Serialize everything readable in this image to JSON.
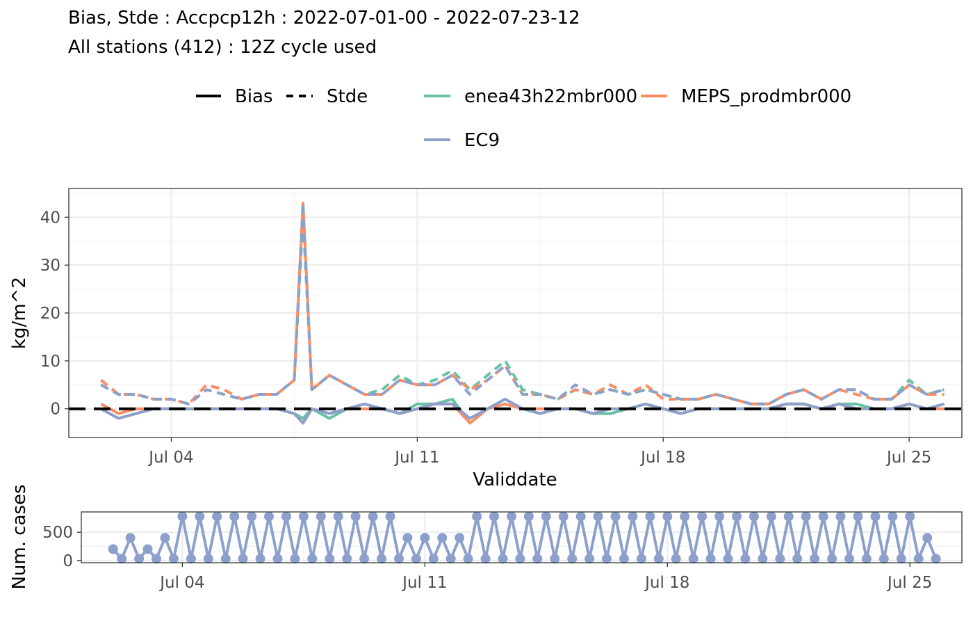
{
  "title": {
    "line1": "Bias, Stde : Accpcp12h : 2022-07-01-00 - 2022-07-23-12",
    "line2": "All stations (412) : 12Z cycle used"
  },
  "legend": {
    "linetypes": [
      {
        "label": "Bias",
        "dash": "solid"
      },
      {
        "label": "Stde",
        "dash": "dashed"
      }
    ],
    "models": [
      {
        "label": "enea43h22mbr000",
        "color": "#66c2a5"
      },
      {
        "label": "MEPS_prodmbr000",
        "color": "#fc8d62"
      },
      {
        "label": "EC9",
        "color": "#8da0cb"
      }
    ]
  },
  "chart_data": [
    {
      "type": "line",
      "xlabel": "Validdate",
      "ylabel": "kg/m^2",
      "x_ticks": [
        "Jul 04",
        "Jul 11",
        "Jul 18",
        "Jul 25"
      ],
      "y_ticks": [
        "0",
        "10",
        "20",
        "30",
        "40"
      ],
      "ylim": [
        -6,
        46
      ],
      "xlim": [
        "2022-07-01T02:00",
        "2022-07-26T12:00"
      ],
      "grid": true,
      "legend_position": "top",
      "reference_line": {
        "y": 0,
        "style": "dashed",
        "color": "#000000"
      },
      "x": [
        "2022-07-02T00:00",
        "2022-07-02T12:00",
        "2022-07-03T00:00",
        "2022-07-03T12:00",
        "2022-07-04T00:00",
        "2022-07-04T12:00",
        "2022-07-05T00:00",
        "2022-07-05T12:00",
        "2022-07-06T00:00",
        "2022-07-06T12:00",
        "2022-07-07T00:00",
        "2022-07-07T12:00",
        "2022-07-07T18:00",
        "2022-07-08T00:00",
        "2022-07-08T12:00",
        "2022-07-09T00:00",
        "2022-07-09T12:00",
        "2022-07-10T00:00",
        "2022-07-10T12:00",
        "2022-07-11T00:00",
        "2022-07-11T12:00",
        "2022-07-12T00:00",
        "2022-07-12T12:00",
        "2022-07-13T00:00",
        "2022-07-13T12:00",
        "2022-07-14T00:00",
        "2022-07-14T12:00",
        "2022-07-15T00:00",
        "2022-07-15T12:00",
        "2022-07-16T00:00",
        "2022-07-16T12:00",
        "2022-07-17T00:00",
        "2022-07-17T12:00",
        "2022-07-18T00:00",
        "2022-07-18T12:00",
        "2022-07-19T00:00",
        "2022-07-19T12:00",
        "2022-07-20T00:00",
        "2022-07-20T12:00",
        "2022-07-21T00:00",
        "2022-07-21T12:00",
        "2022-07-22T00:00",
        "2022-07-22T12:00",
        "2022-07-23T00:00",
        "2022-07-23T12:00",
        "2022-07-24T00:00",
        "2022-07-24T12:00",
        "2022-07-25T00:00",
        "2022-07-25T12:00",
        "2022-07-26T00:00"
      ],
      "series": [
        {
          "name": "enea43h22mbr000",
          "metric": "Stde",
          "color": "#66c2a5",
          "values": [
            5,
            3,
            3,
            2,
            2,
            1,
            4,
            3,
            2,
            3,
            3,
            6,
            40,
            4,
            7,
            5,
            3,
            4,
            7,
            5,
            6,
            8,
            4,
            7,
            10,
            4,
            3,
            2,
            4,
            3,
            4,
            3,
            4,
            3,
            2,
            2,
            3,
            2,
            1,
            1,
            3,
            4,
            2,
            4,
            4,
            2,
            2,
            6,
            3,
            4
          ]
        },
        {
          "name": "MEPS_prodmbr000",
          "metric": "Stde",
          "color": "#fc8d62",
          "values": [
            6,
            3,
            3,
            2,
            2,
            1,
            5,
            4,
            2,
            3,
            3,
            6,
            43,
            4,
            7,
            5,
            3,
            3,
            6,
            5,
            5,
            7,
            4,
            6,
            9,
            3,
            3,
            2,
            4,
            3,
            5,
            3,
            5,
            2,
            2,
            2,
            3,
            2,
            1,
            1,
            3,
            4,
            2,
            4,
            3,
            2,
            2,
            5,
            3,
            3
          ]
        },
        {
          "name": "EC9",
          "metric": "Stde",
          "color": "#8da0cb",
          "values": [
            5,
            3,
            3,
            2,
            2,
            1,
            4,
            3,
            2,
            3,
            3,
            6,
            43,
            4,
            7,
            5,
            3,
            3,
            6,
            5,
            5,
            7,
            3,
            6,
            9,
            3,
            3,
            2,
            5,
            3,
            4,
            3,
            4,
            3,
            2,
            2,
            3,
            2,
            1,
            1,
            3,
            4,
            2,
            4,
            4,
            2,
            2,
            5,
            3,
            4
          ]
        },
        {
          "name": "enea43h22mbr000",
          "metric": "Bias",
          "color": "#66c2a5",
          "values": [
            0,
            -2,
            -1,
            0,
            0,
            0,
            0,
            0,
            0,
            0,
            0,
            -1,
            -2,
            0,
            -2,
            0,
            1,
            0,
            -1,
            1,
            1,
            2,
            -3,
            0,
            2,
            0,
            -1,
            0,
            0,
            -1,
            -1,
            0,
            1,
            0,
            -1,
            0,
            0,
            0,
            0,
            0,
            1,
            1,
            0,
            1,
            1,
            0,
            0,
            1,
            0,
            1
          ]
        },
        {
          "name": "MEPS_prodmbr000",
          "metric": "Bias",
          "color": "#fc8d62",
          "values": [
            1,
            -1,
            0,
            0,
            0,
            0,
            0,
            0,
            0,
            0,
            0,
            -1,
            -3,
            0,
            -1,
            0,
            0,
            0,
            -1,
            0,
            1,
            1,
            -3,
            0,
            1,
            0,
            0,
            0,
            0,
            -1,
            0,
            0,
            1,
            0,
            -1,
            0,
            0,
            0,
            0,
            0,
            1,
            1,
            0,
            1,
            0,
            0,
            0,
            1,
            0,
            0
          ]
        },
        {
          "name": "EC9",
          "metric": "Bias",
          "color": "#8da0cb",
          "values": [
            0,
            -2,
            -1,
            0,
            0,
            0,
            0,
            0,
            0,
            0,
            0,
            -1,
            -3,
            0,
            -1,
            0,
            1,
            0,
            -1,
            0,
            1,
            1,
            -2,
            0,
            2,
            0,
            -1,
            0,
            0,
            -1,
            0,
            0,
            1,
            0,
            -1,
            0,
            0,
            0,
            0,
            0,
            1,
            1,
            0,
            1,
            0,
            0,
            0,
            1,
            0,
            1
          ]
        }
      ]
    },
    {
      "type": "line",
      "ylabel": "Num. cases",
      "x_ticks": [
        "Jul 04",
        "Jul 11",
        "Jul 18",
        "Jul 25"
      ],
      "y_ticks": [
        "0",
        "500"
      ],
      "ylim": [
        -40,
        860
      ],
      "grid": true,
      "series": [
        {
          "name": "EC9",
          "color": "#8da0cb",
          "note_markers": "points",
          "x": [
            "2022-07-02T00:00",
            "2022-07-02T06:00",
            "2022-07-02T12:00",
            "2022-07-02T18:00",
            "2022-07-03T00:00",
            "2022-07-03T06:00",
            "2022-07-03T12:00",
            "2022-07-03T18:00",
            "2022-07-04T00:00",
            "2022-07-04T06:00",
            "2022-07-04T12:00",
            "2022-07-04T18:00",
            "2022-07-05T00:00",
            "2022-07-05T06:00",
            "2022-07-05T12:00",
            "2022-07-05T18:00",
            "2022-07-06T00:00",
            "2022-07-06T06:00",
            "2022-07-06T12:00",
            "2022-07-06T18:00",
            "2022-07-07T00:00",
            "2022-07-07T06:00",
            "2022-07-07T12:00",
            "2022-07-07T18:00",
            "2022-07-08T00:00",
            "2022-07-08T06:00",
            "2022-07-08T12:00",
            "2022-07-08T18:00",
            "2022-07-09T00:00",
            "2022-07-09T06:00",
            "2022-07-09T12:00",
            "2022-07-09T18:00",
            "2022-07-10T00:00",
            "2022-07-10T06:00",
            "2022-07-10T12:00",
            "2022-07-10T18:00",
            "2022-07-11T00:00",
            "2022-07-11T06:00",
            "2022-07-11T12:00",
            "2022-07-11T18:00",
            "2022-07-12T00:00",
            "2022-07-12T06:00",
            "2022-07-12T12:00",
            "2022-07-12T18:00",
            "2022-07-13T00:00",
            "2022-07-13T06:00",
            "2022-07-13T12:00",
            "2022-07-13T18:00",
            "2022-07-14T00:00",
            "2022-07-14T06:00",
            "2022-07-14T12:00",
            "2022-07-14T18:00",
            "2022-07-15T00:00",
            "2022-07-15T06:00",
            "2022-07-15T12:00",
            "2022-07-15T18:00",
            "2022-07-16T00:00",
            "2022-07-16T06:00",
            "2022-07-16T12:00",
            "2022-07-16T18:00",
            "2022-07-17T00:00",
            "2022-07-17T06:00",
            "2022-07-17T12:00",
            "2022-07-17T18:00",
            "2022-07-18T00:00",
            "2022-07-18T06:00",
            "2022-07-18T12:00",
            "2022-07-18T18:00",
            "2022-07-19T00:00",
            "2022-07-19T06:00",
            "2022-07-19T12:00",
            "2022-07-19T18:00",
            "2022-07-20T00:00",
            "2022-07-20T06:00",
            "2022-07-20T12:00",
            "2022-07-20T18:00",
            "2022-07-21T00:00",
            "2022-07-21T06:00",
            "2022-07-21T12:00",
            "2022-07-21T18:00",
            "2022-07-22T00:00",
            "2022-07-22T06:00",
            "2022-07-22T12:00",
            "2022-07-22T18:00",
            "2022-07-23T00:00",
            "2022-07-23T06:00",
            "2022-07-23T12:00",
            "2022-07-23T18:00",
            "2022-07-24T00:00",
            "2022-07-24T06:00",
            "2022-07-24T12:00",
            "2022-07-24T18:00",
            "2022-07-25T00:00",
            "2022-07-25T06:00",
            "2022-07-25T12:00",
            "2022-07-25T18:00"
          ],
          "values": [
            200,
            30,
            400,
            30,
            200,
            30,
            400,
            30,
            780,
            30,
            780,
            30,
            780,
            30,
            780,
            30,
            780,
            30,
            780,
            30,
            780,
            30,
            780,
            30,
            780,
            30,
            780,
            30,
            780,
            30,
            780,
            30,
            780,
            30,
            400,
            30,
            400,
            30,
            400,
            30,
            400,
            30,
            780,
            30,
            780,
            30,
            780,
            30,
            780,
            30,
            780,
            30,
            780,
            30,
            780,
            30,
            780,
            30,
            780,
            30,
            780,
            30,
            780,
            30,
            780,
            30,
            780,
            30,
            780,
            30,
            780,
            30,
            780,
            30,
            780,
            30,
            780,
            30,
            780,
            30,
            780,
            30,
            780,
            30,
            780,
            30,
            780,
            30,
            780,
            30,
            780,
            30,
            780,
            30,
            400,
            30
          ]
        }
      ]
    }
  ]
}
